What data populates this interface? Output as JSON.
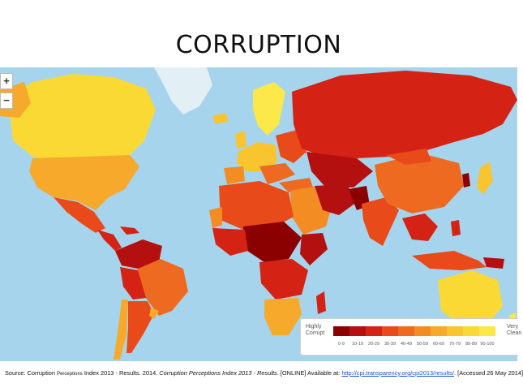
{
  "title": "CORRUPTION",
  "map": {
    "zoom_in_label": "+",
    "zoom_out_label": "−",
    "ocean_color": "#a6d4ec"
  },
  "legend": {
    "low_label": "Highly Corrupt",
    "high_label": "Very Clean",
    "bins": [
      {
        "label": "0-9",
        "color": "#8b0000"
      },
      {
        "label": "10-19",
        "color": "#b51010"
      },
      {
        "label": "20-29",
        "color": "#d42214"
      },
      {
        "label": "30-39",
        "color": "#e84a1a"
      },
      {
        "label": "40-49",
        "color": "#ee6a20"
      },
      {
        "label": "50-59",
        "color": "#f28c23"
      },
      {
        "label": "60-69",
        "color": "#f6a92a"
      },
      {
        "label": "70-79",
        "color": "#f9c52f"
      },
      {
        "label": "80-89",
        "color": "#fbd935"
      },
      {
        "label": "90-100",
        "color": "#fde84a"
      }
    ]
  },
  "source": {
    "prefix": "Source: Corruption",
    "perceptions": "Perceptions",
    "middle": "Index 2013 - Results. 2014.",
    "italic": "Corruption Perceptions Index 2013 - Results",
    "after_italic": ". [ONLINE] Available at:",
    "url": "http://cpi.transparency.org/cpi2013/results/",
    "suffix": ". [Accessed 26 May 2014]"
  }
}
